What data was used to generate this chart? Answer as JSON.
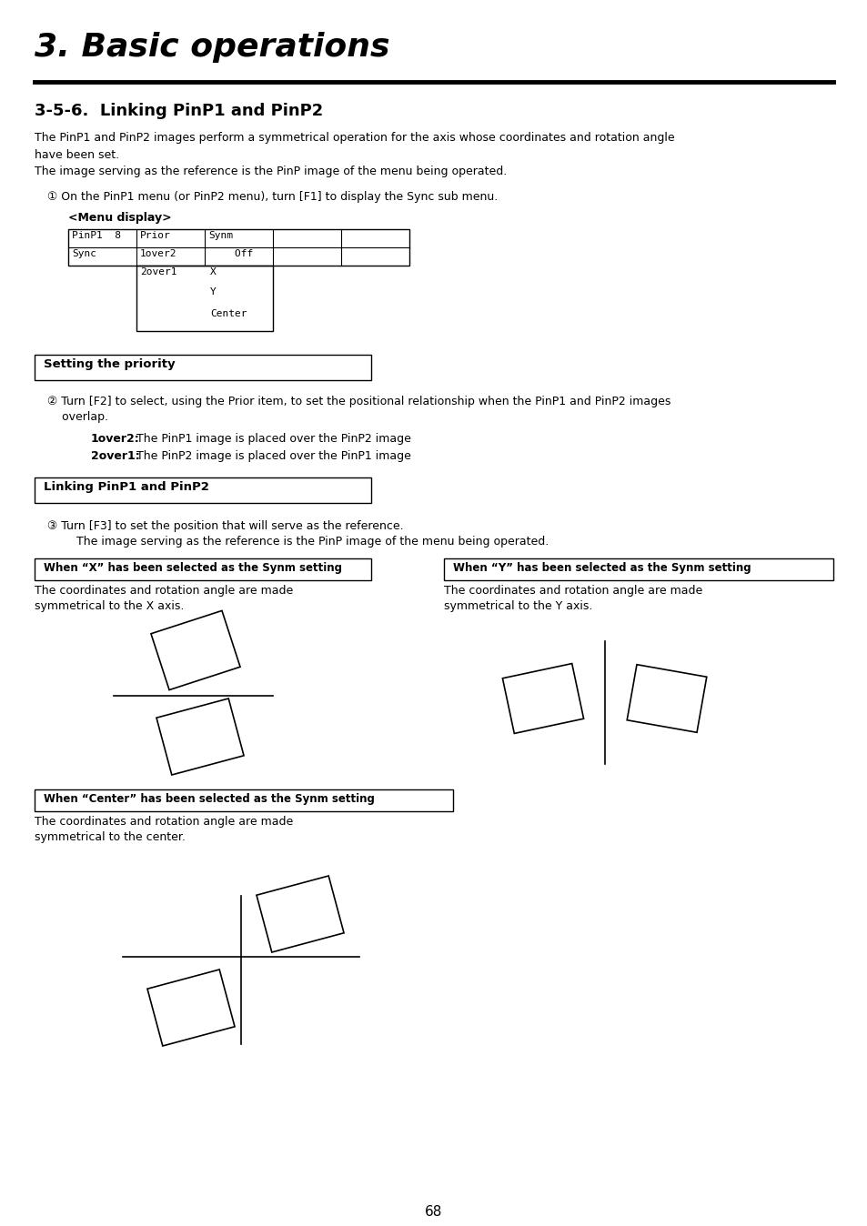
{
  "title": "3. Basic operations",
  "section": "3-5-6.  Linking PinP1 and PinP2",
  "body_text1": "The PinP1 and PinP2 images perform a symmetrical operation for the axis whose coordinates and rotation angle\nhave been set.\nThe image serving as the reference is the PinP image of the menu being operated.",
  "circle1": "① On the PinP1 menu (or PinP2 menu), turn [F1] to display the Sync sub menu.",
  "menu_display_label": "<Menu display>",
  "box1_label": "Setting the priority",
  "circle2_line1": "② Turn [F2] to select, using the Prior item, to set the positional relationship when the PinP1 and PinP2 images",
  "circle2_line2": "    overlap.",
  "bold1": "1over2:",
  "text_1over2": " The PinP1 image is placed over the PinP2 image",
  "bold2": "2over1:",
  "text_2over1": " The PinP2 image is placed over the PinP1 image",
  "box2_label": "Linking PinP1 and PinP2",
  "circle3_line1": "③ Turn [F3] to set the position that will serve as the reference.",
  "circle3_line2": "    The image serving as the reference is the PinP image of the menu being operated.",
  "box3_label": "When “X” has been selected as the Synm setting",
  "box3_text1": "The coordinates and rotation angle are made",
  "box3_text2": "symmetrical to the X axis.",
  "box4_label": "When “Y” has been selected as the Synm setting",
  "box4_text1": "The coordinates and rotation angle are made",
  "box4_text2": "symmetrical to the Y axis.",
  "box5_label": "When “Center” has been selected as the Synm setting",
  "box5_text1": "The coordinates and rotation angle are made",
  "box5_text2": "symmetrical to the center.",
  "page_number": "68",
  "bg_color": "#ffffff",
  "text_color": "#000000"
}
